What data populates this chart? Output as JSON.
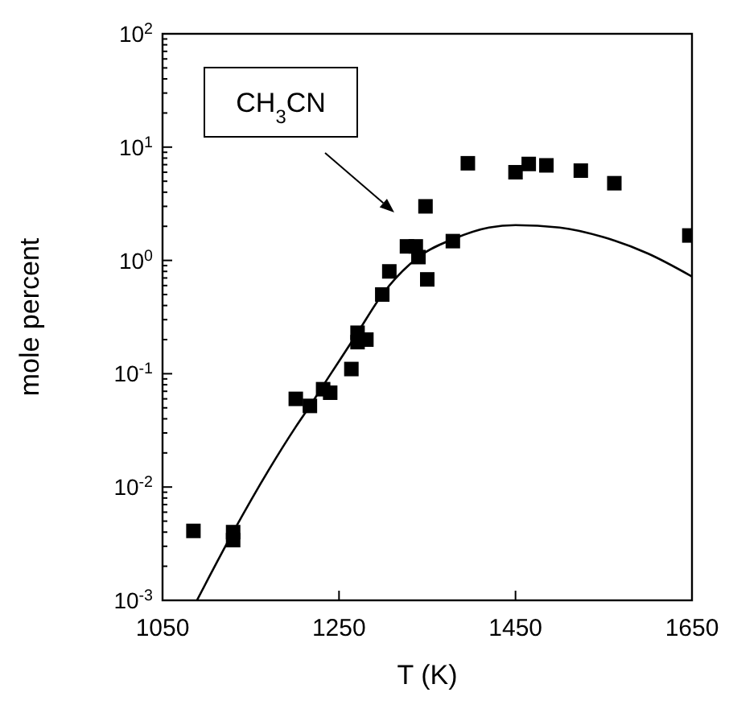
{
  "chart_data": {
    "type": "scatter",
    "xlabel": "T (K)",
    "ylabel": "mole percent",
    "log": "y",
    "xlim": [
      1050,
      1650
    ],
    "xticks": [
      1050,
      1250,
      1450,
      1650
    ],
    "ylim": [
      0.001,
      100
    ],
    "yticks": [
      {
        "value": 0.001,
        "label": "10$^{-3}$"
      },
      {
        "value": 0.01,
        "label": "10$^{-2}$"
      },
      {
        "value": 0.1,
        "label": "10$^{-1}$"
      },
      {
        "value": 1,
        "label": "10$^{0}$"
      },
      {
        "value": 10,
        "label": "10$^{1}$"
      },
      {
        "value": 100,
        "label": "10$^{2}$"
      }
    ],
    "annotations": [
      "CH$_{3}$CN"
    ],
    "series": [
      {
        "color": "#000000",
        "marker": "square",
        "x": [
          1085,
          1130,
          1130,
          1201,
          1217,
          1232,
          1240,
          1264,
          1271,
          1271,
          1281,
          1299,
          1307,
          1327,
          1337,
          1340,
          1350,
          1348,
          1379,
          1396,
          1450,
          1465,
          1485,
          1524,
          1562,
          1647
        ],
        "values": [
          0.0041,
          0.004,
          0.0034,
          0.06,
          0.052,
          0.073,
          0.068,
          0.11,
          0.23,
          0.19,
          0.2,
          0.5,
          0.8,
          1.33,
          1.33,
          1.07,
          0.68,
          3.0,
          1.48,
          7.2,
          6.0,
          7.1,
          6.9,
          6.2,
          4.8,
          1.66
        ]
      },
      {
        "type": "line",
        "color": "#000000",
        "x": [
          1089,
          1130,
          1170,
          1201,
          1217,
          1240,
          1271,
          1299,
          1340,
          1380,
          1420,
          1450,
          1500,
          1550,
          1600,
          1650
        ],
        "values": [
          0.001,
          0.004,
          0.014,
          0.034,
          0.052,
          0.098,
          0.23,
          0.5,
          1.07,
          1.55,
          1.95,
          2.05,
          1.95,
          1.6,
          1.15,
          0.72
        ]
      }
    ]
  }
}
